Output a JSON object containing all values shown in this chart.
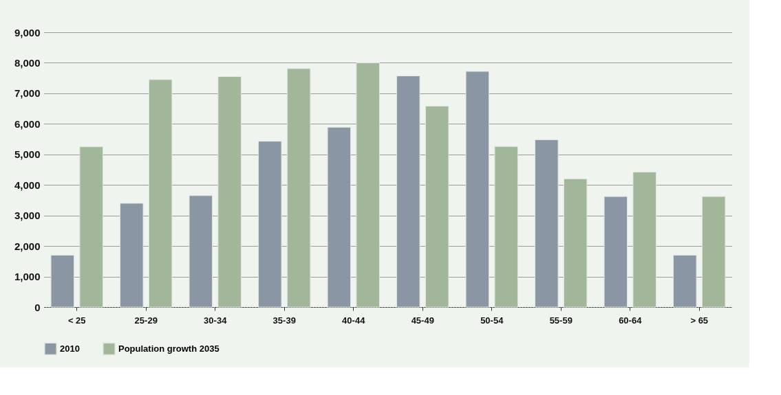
{
  "chart_data": {
    "type": "bar",
    "categories": [
      "< 25",
      "25-29",
      "30-34",
      "35-39",
      "40-44",
      "45-49",
      "50-54",
      "55-59",
      "60-64",
      "> 65"
    ],
    "series": [
      {
        "name": "2010",
        "color": "#8a96a3",
        "values": [
          1700,
          3400,
          3650,
          5430,
          5890,
          7570,
          7720,
          5480,
          3620,
          1700
        ]
      },
      {
        "name": "Population growth 2035",
        "color": "#a2b79a",
        "values": [
          5250,
          7450,
          7550,
          7810,
          8000,
          6580,
          5260,
          4200,
          4420,
          3620
        ]
      }
    ],
    "ylim": [
      0,
      9000
    ],
    "yticks": [
      {
        "value": 0,
        "label": "0"
      },
      {
        "value": 1000,
        "label": "1,000"
      },
      {
        "value": 2000,
        "label": "2,000"
      },
      {
        "value": 3000,
        "label": "3,000"
      },
      {
        "value": 4000,
        "label": "4,000"
      },
      {
        "value": 5000,
        "label": "5,000"
      },
      {
        "value": 6000,
        "label": "6,000"
      },
      {
        "value": 7000,
        "label": "7,000"
      },
      {
        "value": 8000,
        "label": "8,000"
      },
      {
        "value": 9000,
        "label": "9,000"
      }
    ],
    "grid": "y",
    "legend": "bottom"
  }
}
